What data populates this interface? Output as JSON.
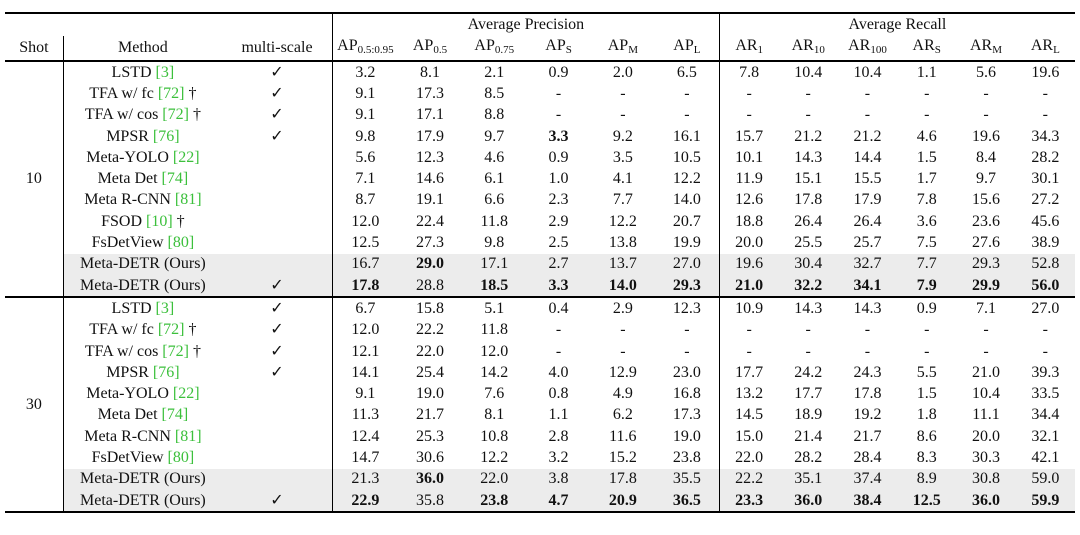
{
  "header": {
    "groups": [
      "Average Precision",
      "Average Recall"
    ],
    "columns": [
      {
        "base": "Shot"
      },
      {
        "base": "Method"
      },
      {
        "base": "multi-scale"
      },
      {
        "base": "AP",
        "sub": "0.5:0.95"
      },
      {
        "base": "AP",
        "sub": "0.5"
      },
      {
        "base": "AP",
        "sub": "0.75"
      },
      {
        "base": "AP",
        "sub": "S"
      },
      {
        "base": "AP",
        "sub": "M"
      },
      {
        "base": "AP",
        "sub": "L"
      },
      {
        "base": "AR",
        "sub": "1"
      },
      {
        "base": "AR",
        "sub": "10"
      },
      {
        "base": "AR",
        "sub": "100"
      },
      {
        "base": "AR",
        "sub": "S"
      },
      {
        "base": "AR",
        "sub": "M"
      },
      {
        "base": "AR",
        "sub": "L"
      }
    ]
  },
  "groups": [
    {
      "shot": "10",
      "rows": [
        {
          "name": "LSTD",
          "ref": "[3]",
          "check": "✓",
          "cells": [
            "3.2",
            "8.1",
            "2.1",
            "0.9",
            "2.0",
            "6.5",
            "7.8",
            "10.4",
            "10.4",
            "1.1",
            "5.6",
            "19.6"
          ]
        },
        {
          "name": "TFA w/ fc",
          "ref": "[72]",
          "mark": "†",
          "check": "✓",
          "cells": [
            "9.1",
            "17.3",
            "8.5",
            "-",
            "-",
            "-",
            "-",
            "-",
            "-",
            "-",
            "-",
            "-"
          ]
        },
        {
          "name": "TFA w/ cos",
          "ref": "[72]",
          "mark": "†",
          "check": "✓",
          "cells": [
            "9.1",
            "17.1",
            "8.8",
            "-",
            "-",
            "-",
            "-",
            "-",
            "-",
            "-",
            "-",
            "-"
          ]
        },
        {
          "name": "MPSR",
          "ref": "[76]",
          "check": "✓",
          "cells": [
            "9.8",
            "17.9",
            "9.7",
            "3.3",
            "9.2",
            "16.1",
            "15.7",
            "21.2",
            "21.2",
            "4.6",
            "19.6",
            "34.3"
          ],
          "bold": [
            3
          ]
        },
        {
          "name": "Meta-YOLO",
          "ref": "[22]",
          "cells": [
            "5.6",
            "12.3",
            "4.6",
            "0.9",
            "3.5",
            "10.5",
            "10.1",
            "14.3",
            "14.4",
            "1.5",
            "8.4",
            "28.2"
          ]
        },
        {
          "name": "Meta Det",
          "ref": "[74]",
          "cells": [
            "7.1",
            "14.6",
            "6.1",
            "1.0",
            "4.1",
            "12.2",
            "11.9",
            "15.1",
            "15.5",
            "1.7",
            "9.7",
            "30.1"
          ]
        },
        {
          "name": "Meta R-CNN",
          "ref": "[81]",
          "cells": [
            "8.7",
            "19.1",
            "6.6",
            "2.3",
            "7.7",
            "14.0",
            "12.6",
            "17.8",
            "17.9",
            "7.8",
            "15.6",
            "27.2"
          ]
        },
        {
          "name": "FSOD",
          "ref": "[10]",
          "mark": "†",
          "cells": [
            "12.0",
            "22.4",
            "11.8",
            "2.9",
            "12.2",
            "20.7",
            "18.8",
            "26.4",
            "26.4",
            "3.6",
            "23.6",
            "45.6"
          ]
        },
        {
          "name": "FsDetView",
          "ref": "[80]",
          "cells": [
            "12.5",
            "27.3",
            "9.8",
            "2.5",
            "13.8",
            "19.9",
            "20.0",
            "25.5",
            "25.7",
            "7.5",
            "27.6",
            "38.9"
          ]
        },
        {
          "name": "Meta-DETR (Ours)",
          "highlight": true,
          "cells": [
            "16.7",
            "29.0",
            "17.1",
            "2.7",
            "13.7",
            "27.0",
            "19.6",
            "30.4",
            "32.7",
            "7.7",
            "29.3",
            "52.8"
          ],
          "bold": [
            1
          ]
        },
        {
          "name": "Meta-DETR (Ours)",
          "highlight": true,
          "check": "✓",
          "cells": [
            "17.8",
            "28.8",
            "18.5",
            "3.3",
            "14.0",
            "29.3",
            "21.0",
            "32.2",
            "34.1",
            "7.9",
            "29.9",
            "56.0"
          ],
          "bold": [
            0,
            2,
            3,
            4,
            5,
            6,
            7,
            8,
            9,
            10,
            11
          ]
        }
      ]
    },
    {
      "shot": "30",
      "rows": [
        {
          "name": "LSTD",
          "ref": "[3]",
          "check": "✓",
          "cells": [
            "6.7",
            "15.8",
            "5.1",
            "0.4",
            "2.9",
            "12.3",
            "10.9",
            "14.3",
            "14.3",
            "0.9",
            "7.1",
            "27.0"
          ]
        },
        {
          "name": "TFA w/ fc",
          "ref": "[72]",
          "mark": "†",
          "check": "✓",
          "cells": [
            "12.0",
            "22.2",
            "11.8",
            "-",
            "-",
            "-",
            "-",
            "-",
            "-",
            "-",
            "-",
            "-"
          ]
        },
        {
          "name": "TFA w/ cos",
          "ref": "[72]",
          "mark": "†",
          "check": "✓",
          "cells": [
            "12.1",
            "22.0",
            "12.0",
            "-",
            "-",
            "-",
            "-",
            "-",
            "-",
            "-",
            "-",
            "-"
          ]
        },
        {
          "name": "MPSR",
          "ref": "[76]",
          "check": "✓",
          "cells": [
            "14.1",
            "25.4",
            "14.2",
            "4.0",
            "12.9",
            "23.0",
            "17.7",
            "24.2",
            "24.3",
            "5.5",
            "21.0",
            "39.3"
          ]
        },
        {
          "name": "Meta-YOLO",
          "ref": "[22]",
          "cells": [
            "9.1",
            "19.0",
            "7.6",
            "0.8",
            "4.9",
            "16.8",
            "13.2",
            "17.7",
            "17.8",
            "1.5",
            "10.4",
            "33.5"
          ]
        },
        {
          "name": "Meta Det",
          "ref": "[74]",
          "cells": [
            "11.3",
            "21.7",
            "8.1",
            "1.1",
            "6.2",
            "17.3",
            "14.5",
            "18.9",
            "19.2",
            "1.8",
            "11.1",
            "34.4"
          ]
        },
        {
          "name": "Meta R-CNN",
          "ref": "[81]",
          "cells": [
            "12.4",
            "25.3",
            "10.8",
            "2.8",
            "11.6",
            "19.0",
            "15.0",
            "21.4",
            "21.7",
            "8.6",
            "20.0",
            "32.1"
          ]
        },
        {
          "name": "FsDetView",
          "ref": "[80]",
          "cells": [
            "14.7",
            "30.6",
            "12.2",
            "3.2",
            "15.2",
            "23.8",
            "22.0",
            "28.2",
            "28.4",
            "8.3",
            "30.3",
            "42.1"
          ]
        },
        {
          "name": "Meta-DETR (Ours)",
          "highlight": true,
          "cells": [
            "21.3",
            "36.0",
            "22.0",
            "3.8",
            "17.8",
            "35.5",
            "22.2",
            "35.1",
            "37.4",
            "8.9",
            "30.8",
            "59.0"
          ],
          "bold": [
            1
          ]
        },
        {
          "name": "Meta-DETR (Ours)",
          "highlight": true,
          "check": "✓",
          "cells": [
            "22.9",
            "35.8",
            "23.8",
            "4.7",
            "20.9",
            "36.5",
            "23.3",
            "36.0",
            "38.4",
            "12.5",
            "36.0",
            "59.9"
          ],
          "bold": [
            0,
            2,
            3,
            4,
            5,
            6,
            7,
            8,
            9,
            10,
            11
          ]
        }
      ]
    }
  ]
}
